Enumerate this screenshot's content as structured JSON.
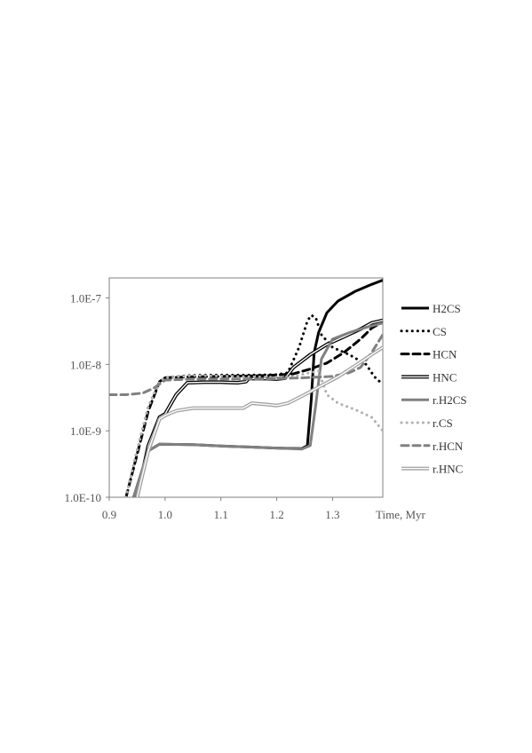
{
  "chart_data": {
    "type": "line",
    "title": "",
    "xlabel": "Time, Myr",
    "ylabel": "",
    "xlim": [
      0.9,
      1.39
    ],
    "ylim": [
      1e-10,
      2e-07
    ],
    "y_scale": "log",
    "grid": false,
    "legend_position": "right",
    "x_ticks": [
      {
        "value": 0.9,
        "label": "0.9"
      },
      {
        "value": 1.0,
        "label": "1.0"
      },
      {
        "value": 1.1,
        "label": "1.1"
      },
      {
        "value": 1.2,
        "label": "1.2"
      },
      {
        "value": 1.3,
        "label": "1.3"
      }
    ],
    "y_ticks": [
      {
        "value": 1e-10,
        "label": "1.0E-10"
      },
      {
        "value": 1e-09,
        "label": "1.0E-9"
      },
      {
        "value": 1e-08,
        "label": "1.0E-8"
      },
      {
        "value": 1e-07,
        "label": "1.0E-7"
      }
    ],
    "series": [
      {
        "name": "H2CS",
        "color": "#000000",
        "style": "solid",
        "points": [
          [
            0.94,
            8e-11
          ],
          [
            0.97,
            5e-10
          ],
          [
            0.99,
            6.3e-10
          ],
          [
            1.05,
            6.2e-10
          ],
          [
            1.1,
            5.9e-10
          ],
          [
            1.15,
            5.7e-10
          ],
          [
            1.2,
            5.5e-10
          ],
          [
            1.245,
            5.4e-10
          ],
          [
            1.255,
            6e-10
          ],
          [
            1.262,
            3e-09
          ],
          [
            1.267,
            1.5e-08
          ],
          [
            1.275,
            3e-08
          ],
          [
            1.29,
            6e-08
          ],
          [
            1.31,
            9e-08
          ],
          [
            1.34,
            1.25e-07
          ],
          [
            1.37,
            1.6e-07
          ],
          [
            1.39,
            1.85e-07
          ]
        ]
      },
      {
        "name": "CS",
        "color": "#000000",
        "style": "dotted",
        "points": [
          [
            0.93,
            1e-10
          ],
          [
            0.95,
            5e-10
          ],
          [
            0.97,
            2.3e-09
          ],
          [
            0.99,
            5.5e-09
          ],
          [
            1.0,
            6.3e-09
          ],
          [
            1.05,
            6.9e-09
          ],
          [
            1.1,
            6.9e-09
          ],
          [
            1.15,
            6.9e-09
          ],
          [
            1.2,
            7e-09
          ],
          [
            1.22,
            7.5e-09
          ],
          [
            1.24,
            1.8e-08
          ],
          [
            1.255,
            4.5e-08
          ],
          [
            1.262,
            5.5e-08
          ],
          [
            1.27,
            5e-08
          ],
          [
            1.28,
            2.8e-08
          ],
          [
            1.3,
            1.8e-08
          ],
          [
            1.33,
            1.4e-08
          ],
          [
            1.36,
            1e-08
          ],
          [
            1.375,
            6.5e-09
          ],
          [
            1.39,
            5e-09
          ]
        ]
      },
      {
        "name": "HCN",
        "color": "#000000",
        "style": "dashed",
        "points": [
          [
            0.93,
            1e-10
          ],
          [
            0.97,
            2e-09
          ],
          [
            0.99,
            5.5e-09
          ],
          [
            1.0,
            6.3e-09
          ],
          [
            1.05,
            6.5e-09
          ],
          [
            1.1,
            6.6e-09
          ],
          [
            1.15,
            6.7e-09
          ],
          [
            1.2,
            6.9e-09
          ],
          [
            1.23,
            7.2e-09
          ],
          [
            1.26,
            8.5e-09
          ],
          [
            1.29,
            1.05e-08
          ],
          [
            1.32,
            1.5e-08
          ],
          [
            1.35,
            2.4e-08
          ],
          [
            1.37,
            3.5e-08
          ],
          [
            1.39,
            4.4e-08
          ]
        ]
      },
      {
        "name": "HNC",
        "color": "#000000",
        "style": "double",
        "points": [
          [
            0.95,
            1e-10
          ],
          [
            0.97,
            6e-10
          ],
          [
            0.99,
            1.6e-09
          ],
          [
            1.0,
            1.8e-09
          ],
          [
            1.02,
            3.5e-09
          ],
          [
            1.04,
            5.3e-09
          ],
          [
            1.07,
            5.4e-09
          ],
          [
            1.1,
            5.4e-09
          ],
          [
            1.13,
            5.3e-09
          ],
          [
            1.145,
            5.5e-09
          ],
          [
            1.15,
            6.1e-09
          ],
          [
            1.18,
            6.1e-09
          ],
          [
            1.2,
            6e-09
          ],
          [
            1.215,
            6.2e-09
          ],
          [
            1.23,
            9e-09
          ],
          [
            1.26,
            1.4e-08
          ],
          [
            1.29,
            2e-08
          ],
          [
            1.32,
            2.6e-08
          ],
          [
            1.35,
            3.4e-08
          ],
          [
            1.37,
            4.2e-08
          ],
          [
            1.39,
            4.6e-08
          ]
        ]
      },
      {
        "name": "r.H2CS",
        "color": "#808080",
        "style": "solid",
        "points": [
          [
            0.94,
            8e-11
          ],
          [
            0.97,
            5e-10
          ],
          [
            0.99,
            6.3e-10
          ],
          [
            1.05,
            6.2e-10
          ],
          [
            1.1,
            5.9e-10
          ],
          [
            1.15,
            5.7e-10
          ],
          [
            1.2,
            5.5e-10
          ],
          [
            1.245,
            5.3e-10
          ],
          [
            1.26,
            6e-10
          ],
          [
            1.27,
            2.5e-09
          ],
          [
            1.28,
            1.2e-08
          ],
          [
            1.3,
            2.4e-08
          ],
          [
            1.33,
            3e-08
          ],
          [
            1.36,
            3.6e-08
          ],
          [
            1.39,
            4.2e-08
          ]
        ]
      },
      {
        "name": "r.CS",
        "color": "#b0b0b0",
        "style": "dotted",
        "points": [
          [
            0.93,
            1e-10
          ],
          [
            0.95,
            5e-10
          ],
          [
            0.97,
            2.3e-09
          ],
          [
            0.99,
            5.5e-09
          ],
          [
            1.0,
            6.3e-09
          ],
          [
            1.05,
            6.8e-09
          ],
          [
            1.1,
            6.7e-09
          ],
          [
            1.15,
            6.5e-09
          ],
          [
            1.2,
            6.4e-09
          ],
          [
            1.23,
            6.6e-09
          ],
          [
            1.26,
            7.5e-09
          ],
          [
            1.275,
            8e-09
          ],
          [
            1.28,
            6e-09
          ],
          [
            1.29,
            3.5e-09
          ],
          [
            1.31,
            2.6e-09
          ],
          [
            1.34,
            2.1e-09
          ],
          [
            1.37,
            1.6e-09
          ],
          [
            1.39,
            1e-09
          ]
        ]
      },
      {
        "name": "r.HCN",
        "color": "#808080",
        "style": "dashed",
        "points": [
          [
            0.9,
            3.5e-09
          ],
          [
            0.93,
            3.5e-09
          ],
          [
            0.96,
            3.7e-09
          ],
          [
            0.98,
            4.4e-09
          ],
          [
            1.0,
            5.8e-09
          ],
          [
            1.05,
            6e-09
          ],
          [
            1.1,
            6e-09
          ],
          [
            1.15,
            6e-09
          ],
          [
            1.2,
            6.1e-09
          ],
          [
            1.25,
            6.3e-09
          ],
          [
            1.3,
            6.6e-09
          ],
          [
            1.33,
            7.5e-09
          ],
          [
            1.35,
            9e-09
          ],
          [
            1.37,
            1.5e-08
          ],
          [
            1.39,
            2.8e-08
          ]
        ]
      },
      {
        "name": "r.HNC",
        "color": "#a0a0a0",
        "style": "double",
        "points": [
          [
            0.95,
            1e-10
          ],
          [
            0.97,
            5e-10
          ],
          [
            0.99,
            1.5e-09
          ],
          [
            1.0,
            1.7e-09
          ],
          [
            1.02,
            2e-09
          ],
          [
            1.05,
            2.2e-09
          ],
          [
            1.1,
            2.2e-09
          ],
          [
            1.14,
            2.2e-09
          ],
          [
            1.155,
            2.6e-09
          ],
          [
            1.18,
            2.5e-09
          ],
          [
            1.2,
            2.4e-09
          ],
          [
            1.22,
            2.6e-09
          ],
          [
            1.25,
            3.5e-09
          ],
          [
            1.28,
            4.8e-09
          ],
          [
            1.31,
            6.5e-09
          ],
          [
            1.34,
            9.5e-09
          ],
          [
            1.37,
            1.4e-08
          ],
          [
            1.39,
            1.8e-08
          ]
        ]
      }
    ]
  }
}
